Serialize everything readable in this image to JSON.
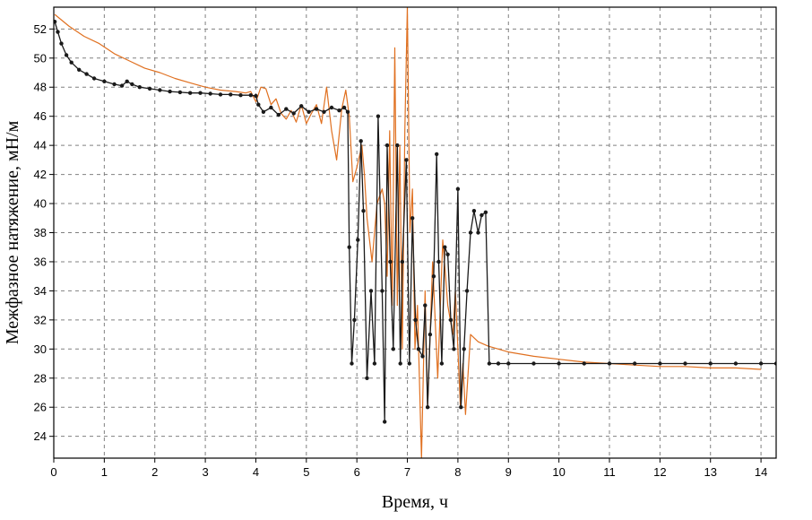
{
  "chart_data": {
    "type": "line",
    "xlabel": "Время, ч",
    "ylabel": "Межфазное натяжение, мН/м",
    "xlim": [
      0,
      14.3
    ],
    "ylim": [
      22.5,
      53.5
    ],
    "x_ticks": [
      0,
      1,
      2,
      3,
      4,
      5,
      6,
      7,
      8,
      9,
      10,
      11,
      12,
      13,
      14
    ],
    "y_ticks": [
      24,
      26,
      28,
      30,
      32,
      34,
      36,
      38,
      40,
      42,
      44,
      46,
      48,
      50,
      52
    ],
    "grid": true,
    "legend": "none",
    "series": [
      {
        "color": "#1a1a1a",
        "markers": true,
        "points": [
          [
            0.02,
            52.5
          ],
          [
            0.08,
            51.8
          ],
          [
            0.15,
            51.0
          ],
          [
            0.25,
            50.2
          ],
          [
            0.35,
            49.7
          ],
          [
            0.5,
            49.2
          ],
          [
            0.65,
            48.9
          ],
          [
            0.8,
            48.6
          ],
          [
            1.0,
            48.4
          ],
          [
            1.2,
            48.2
          ],
          [
            1.35,
            48.1
          ],
          [
            1.45,
            48.4
          ],
          [
            1.55,
            48.2
          ],
          [
            1.7,
            48.0
          ],
          [
            1.9,
            47.9
          ],
          [
            2.1,
            47.8
          ],
          [
            2.3,
            47.7
          ],
          [
            2.5,
            47.65
          ],
          [
            2.7,
            47.6
          ],
          [
            2.9,
            47.6
          ],
          [
            3.1,
            47.55
          ],
          [
            3.3,
            47.5
          ],
          [
            3.5,
            47.5
          ],
          [
            3.7,
            47.45
          ],
          [
            3.9,
            47.45
          ],
          [
            4.0,
            47.4
          ],
          [
            4.05,
            46.8
          ],
          [
            4.15,
            46.3
          ],
          [
            4.3,
            46.6
          ],
          [
            4.45,
            46.1
          ],
          [
            4.6,
            46.5
          ],
          [
            4.75,
            46.2
          ],
          [
            4.9,
            46.7
          ],
          [
            5.05,
            46.3
          ],
          [
            5.2,
            46.5
          ],
          [
            5.35,
            46.3
          ],
          [
            5.5,
            46.6
          ],
          [
            5.65,
            46.4
          ],
          [
            5.75,
            46.6
          ],
          [
            5.82,
            46.3
          ],
          [
            5.85,
            37.0
          ],
          [
            5.9,
            29.0
          ],
          [
            5.95,
            32.0
          ],
          [
            6.02,
            37.5
          ],
          [
            6.08,
            44.3
          ],
          [
            6.13,
            39.5
          ],
          [
            6.2,
            28.0
          ],
          [
            6.28,
            34.0
          ],
          [
            6.35,
            29.0
          ],
          [
            6.42,
            46.0
          ],
          [
            6.5,
            34.0
          ],
          [
            6.55,
            25.0
          ],
          [
            6.6,
            44.0
          ],
          [
            6.66,
            36.0
          ],
          [
            6.72,
            30.0
          ],
          [
            6.8,
            44.0
          ],
          [
            6.86,
            29.0
          ],
          [
            6.9,
            36.0
          ],
          [
            6.98,
            43.0
          ],
          [
            7.04,
            29.0
          ],
          [
            7.1,
            39.0
          ],
          [
            7.16,
            32.0
          ],
          [
            7.22,
            30.0
          ],
          [
            7.3,
            29.5
          ],
          [
            7.35,
            33.0
          ],
          [
            7.4,
            26.0
          ],
          [
            7.45,
            31.0
          ],
          [
            7.52,
            35.0
          ],
          [
            7.58,
            43.4
          ],
          [
            7.62,
            36.0
          ],
          [
            7.68,
            29.0
          ],
          [
            7.74,
            37.0
          ],
          [
            7.8,
            36.5
          ],
          [
            7.86,
            32.0
          ],
          [
            7.92,
            30.0
          ],
          [
            8.0,
            41.0
          ],
          [
            8.06,
            26.0
          ],
          [
            8.12,
            30.0
          ],
          [
            8.18,
            34.0
          ],
          [
            8.25,
            38.0
          ],
          [
            8.32,
            39.5
          ],
          [
            8.4,
            38.0
          ],
          [
            8.47,
            39.2
          ],
          [
            8.55,
            39.4
          ],
          [
            8.62,
            29.0
          ],
          [
            8.8,
            29.0
          ],
          [
            9.0,
            29.0
          ],
          [
            9.5,
            29.0
          ],
          [
            10.0,
            29.0
          ],
          [
            10.5,
            29.0
          ],
          [
            11.0,
            29.0
          ],
          [
            11.5,
            29.0
          ],
          [
            12.0,
            29.0
          ],
          [
            12.5,
            29.0
          ],
          [
            13.0,
            29.0
          ],
          [
            13.5,
            29.0
          ],
          [
            14.0,
            29.0
          ],
          [
            14.3,
            29.0
          ]
        ]
      },
      {
        "color": "#e07020",
        "markers": false,
        "points": [
          [
            0.02,
            53.0
          ],
          [
            0.3,
            52.2
          ],
          [
            0.6,
            51.5
          ],
          [
            0.9,
            51.0
          ],
          [
            1.2,
            50.3
          ],
          [
            1.5,
            49.8
          ],
          [
            1.8,
            49.3
          ],
          [
            2.1,
            49.0
          ],
          [
            2.4,
            48.6
          ],
          [
            2.7,
            48.3
          ],
          [
            3.0,
            48.0
          ],
          [
            3.3,
            47.8
          ],
          [
            3.6,
            47.7
          ],
          [
            3.8,
            47.6
          ],
          [
            3.9,
            47.7
          ],
          [
            4.0,
            47.0
          ],
          [
            4.1,
            48.0
          ],
          [
            4.2,
            47.9
          ],
          [
            4.3,
            46.8
          ],
          [
            4.4,
            47.2
          ],
          [
            4.5,
            46.2
          ],
          [
            4.6,
            45.8
          ],
          [
            4.7,
            46.4
          ],
          [
            4.8,
            45.6
          ],
          [
            4.9,
            46.8
          ],
          [
            5.0,
            45.5
          ],
          [
            5.1,
            46.2
          ],
          [
            5.2,
            46.8
          ],
          [
            5.3,
            45.5
          ],
          [
            5.4,
            48.0
          ],
          [
            5.5,
            45.0
          ],
          [
            5.6,
            43.0
          ],
          [
            5.7,
            46.5
          ],
          [
            5.78,
            47.8
          ],
          [
            5.85,
            46.0
          ],
          [
            5.92,
            41.5
          ],
          [
            6.0,
            42.5
          ],
          [
            6.1,
            44.0
          ],
          [
            6.15,
            42.0
          ],
          [
            6.2,
            39.0
          ],
          [
            6.3,
            36.0
          ],
          [
            6.4,
            40.0
          ],
          [
            6.5,
            41.0
          ],
          [
            6.55,
            40.0
          ],
          [
            6.6,
            35.0
          ],
          [
            6.65,
            45.0
          ],
          [
            6.7,
            33.0
          ],
          [
            6.75,
            50.7
          ],
          [
            6.8,
            33.0
          ],
          [
            6.85,
            44.0
          ],
          [
            6.9,
            30.0
          ],
          [
            6.95,
            45.0
          ],
          [
            7.0,
            53.5
          ],
          [
            7.05,
            38.0
          ],
          [
            7.1,
            41.0
          ],
          [
            7.15,
            30.0
          ],
          [
            7.2,
            33.0
          ],
          [
            7.28,
            22.5
          ],
          [
            7.35,
            34.0
          ],
          [
            7.4,
            26.0
          ],
          [
            7.5,
            36.0
          ],
          [
            7.6,
            28.0
          ],
          [
            7.7,
            37.5
          ],
          [
            7.8,
            33.0
          ],
          [
            7.9,
            31.0
          ],
          [
            7.95,
            34.0
          ],
          [
            8.05,
            26.0
          ],
          [
            8.1,
            29.0
          ],
          [
            8.15,
            25.5
          ],
          [
            8.25,
            31.0
          ],
          [
            8.4,
            30.5
          ],
          [
            8.6,
            30.2
          ],
          [
            8.8,
            30.0
          ],
          [
            9.0,
            29.8
          ],
          [
            9.5,
            29.5
          ],
          [
            10.0,
            29.3
          ],
          [
            10.5,
            29.1
          ],
          [
            11.0,
            29.0
          ],
          [
            11.5,
            28.9
          ],
          [
            12.0,
            28.8
          ],
          [
            12.5,
            28.8
          ],
          [
            13.0,
            28.7
          ],
          [
            13.5,
            28.7
          ],
          [
            14.0,
            28.6
          ]
        ]
      }
    ]
  }
}
